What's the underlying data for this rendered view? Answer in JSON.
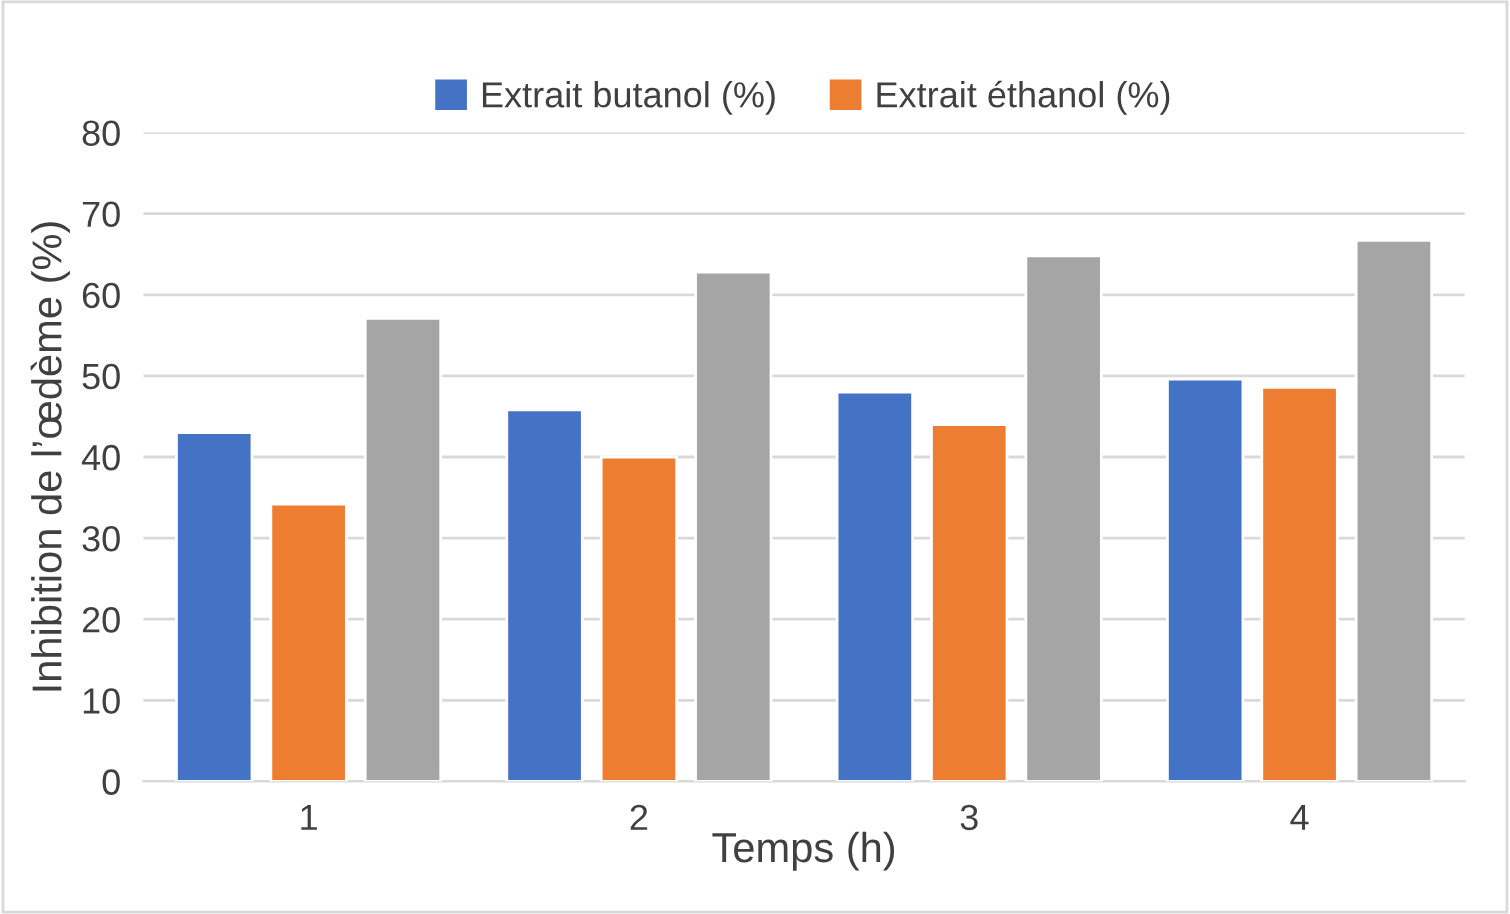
{
  "chart_data": {
    "type": "bar",
    "xlabel": "Temps (h)",
    "ylabel": "Inhibition de l’œdème (%)",
    "categories": [
      "1",
      "2",
      "3",
      "4"
    ],
    "series": [
      {
        "name": "Extrait butanol (%)",
        "color": "#4472c4",
        "values": [
          43,
          45.8,
          48,
          49.6
        ]
      },
      {
        "name": "Extrait éthanol (%)",
        "color": "#ed7d31",
        "values": [
          34.2,
          40,
          44,
          48.6
        ]
      },
      {
        "color": "#a5a5a5",
        "values": [
          57.1,
          62.8,
          64.8,
          66.7
        ]
      }
    ],
    "ylim": [
      0,
      80
    ],
    "yticks": [
      0,
      10,
      20,
      30,
      40,
      50,
      60,
      70,
      80
    ],
    "grid": "y",
    "legend": "top"
  }
}
